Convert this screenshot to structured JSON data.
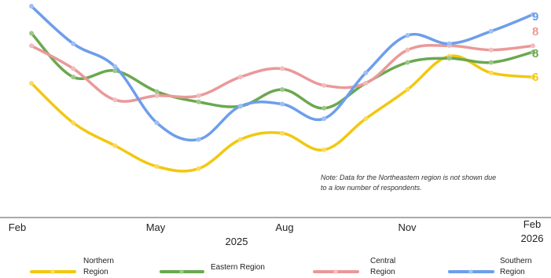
{
  "chart_data": {
    "type": "line",
    "x_ticks": [
      "Feb",
      "May",
      "Aug",
      "Nov",
      "Feb"
    ],
    "year_labels": [
      "2025",
      "2026"
    ],
    "months": [
      "2025-02",
      "2025-03",
      "2025-04",
      "2025-05",
      "2025-06",
      "2025-07",
      "2025-08",
      "2025-09",
      "2025-10",
      "2025-11",
      "2025-12",
      "2026-01",
      "2026-02"
    ],
    "ylim": [
      0,
      100
    ],
    "grid": false,
    "series": [
      {
        "name": "Northern Region",
        "color": "#f2c80f",
        "end_label": "6",
        "values": [
          60,
          41,
          30,
          20,
          19,
          33,
          36,
          28,
          43,
          57,
          73,
          65,
          63
        ]
      },
      {
        "name": "Eastern Region",
        "color": "#6aa84f",
        "end_label": "8",
        "values": [
          84,
          63,
          66,
          56,
          51,
          49,
          57,
          48,
          60,
          70,
          72,
          70,
          75
        ]
      },
      {
        "name": "Central Region",
        "color": "#ea9999",
        "end_label": "8",
        "values": [
          78,
          67,
          52,
          54,
          54,
          63,
          67,
          59,
          60,
          76,
          78,
          76,
          78
        ]
      },
      {
        "name": "Southern Region",
        "color": "#6d9eeb",
        "end_label": "9",
        "values": [
          97,
          79,
          68,
          41,
          33,
          49,
          50,
          43,
          65,
          83,
          79,
          85,
          93
        ]
      }
    ],
    "note_lines": [
      "Note: Data for the Northeastern region is not shown due",
      "to a low number of respondents."
    ],
    "legend": {
      "position": "bottom",
      "items": [
        {
          "line1": "Northern",
          "line2": "Region"
        },
        {
          "line1": "Eastern Region",
          "line2": ""
        },
        {
          "line1": "Central",
          "line2": "Region"
        },
        {
          "line1": "Southern",
          "line2": "Region"
        }
      ]
    }
  }
}
